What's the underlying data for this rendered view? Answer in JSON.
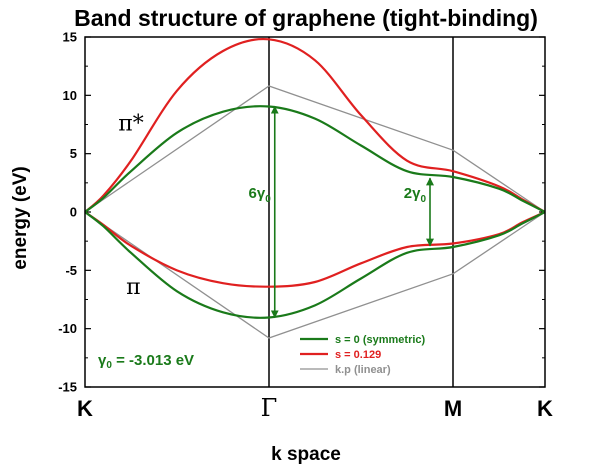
{
  "chart_data": {
    "type": "line",
    "title": "Band structure of graphene (tight-binding)",
    "xlabel": "k space",
    "ylabel": "energy (eV)",
    "ylim": [
      -15,
      15
    ],
    "yticks": [
      -15,
      -10,
      -5,
      0,
      5,
      10,
      15
    ],
    "xlim": [
      0,
      4
    ],
    "xticks": [
      {
        "x": 0,
        "label": "K"
      },
      {
        "x": 1.6,
        "label": "Γ"
      },
      {
        "x": 3.2,
        "label": "M"
      },
      {
        "x": 4,
        "label": "K"
      }
    ],
    "vertical_lines_at": [
      1.6,
      3.2
    ],
    "band_labels": [
      {
        "text": "π*",
        "x": 0.4,
        "y": 7.5
      },
      {
        "text": "π",
        "x": 0.42,
        "y": -6.5
      }
    ],
    "gap_annotations": [
      {
        "at": 1.65,
        "from": -9.04,
        "to": 9.04,
        "label": "6γ",
        "subscript": "0"
      },
      {
        "at": 3.0,
        "from": -2.9,
        "to": 2.9,
        "label": "2γ",
        "subscript": "0"
      }
    ],
    "gamma_annotation": {
      "symbol": "γ",
      "subscript": "0",
      "text": " = -3.013 eV"
    },
    "series": [
      {
        "name": "s = 0 (symmetric)",
        "color": "#1a7a1a",
        "band": "upper",
        "x": [
          0,
          0.16,
          0.4,
          0.8,
          1.2,
          1.6,
          2.0,
          2.4,
          2.8,
          3.2,
          3.6,
          3.8,
          4.0
        ],
        "y": [
          0,
          1.22,
          3.5,
          6.8,
          8.6,
          9.04,
          8.0,
          5.7,
          3.5,
          3.0,
          2.0,
          1.0,
          0
        ]
      },
      {
        "name": "",
        "color": "#1a7a1a",
        "band": "lower",
        "x": [
          0,
          0.16,
          0.4,
          0.8,
          1.2,
          1.6,
          2.0,
          2.4,
          2.8,
          3.2,
          3.6,
          3.8,
          4.0
        ],
        "y": [
          0,
          -1.22,
          -3.5,
          -6.8,
          -8.6,
          -9.04,
          -8.0,
          -5.7,
          -3.5,
          -3.0,
          -2.0,
          -1.0,
          0
        ]
      },
      {
        "name": "s = 0.129",
        "color": "#e02020",
        "band": "upper",
        "x": [
          0,
          0.16,
          0.4,
          0.8,
          1.2,
          1.6,
          2.0,
          2.4,
          2.8,
          3.2,
          3.6,
          3.8,
          4.0
        ],
        "y": [
          0,
          1.4,
          4.4,
          10.4,
          13.8,
          14.8,
          13.0,
          8.3,
          4.4,
          3.5,
          2.2,
          1.1,
          0
        ]
      },
      {
        "name": "",
        "color": "#e02020",
        "band": "lower",
        "x": [
          0,
          0.16,
          0.4,
          0.8,
          1.2,
          1.6,
          2.0,
          2.4,
          2.8,
          3.2,
          3.6,
          3.8,
          4.0
        ],
        "y": [
          0,
          -1.1,
          -2.9,
          -5.0,
          -6.1,
          -6.4,
          -6.0,
          -4.4,
          -3.0,
          -2.7,
          -1.9,
          -0.9,
          0
        ]
      },
      {
        "name": "k.p (linear)",
        "color": "#909090",
        "band": "upper",
        "x": [
          0,
          1.6,
          3.2,
          4.0
        ],
        "y": [
          0,
          10.8,
          5.3,
          0
        ]
      },
      {
        "name": "",
        "color": "#909090",
        "band": "lower",
        "x": [
          0,
          1.6,
          3.2,
          4.0
        ],
        "y": [
          0,
          -10.8,
          -5.3,
          0
        ]
      }
    ],
    "legend": [
      {
        "label": "s = 0 (symmetric)",
        "color": "#1a7a1a"
      },
      {
        "label": "s = 0.129",
        "color": "#e02020"
      },
      {
        "label": "k.p (linear)",
        "color": "#909090"
      }
    ],
    "legend_position": "bottom-right",
    "grid": false
  }
}
